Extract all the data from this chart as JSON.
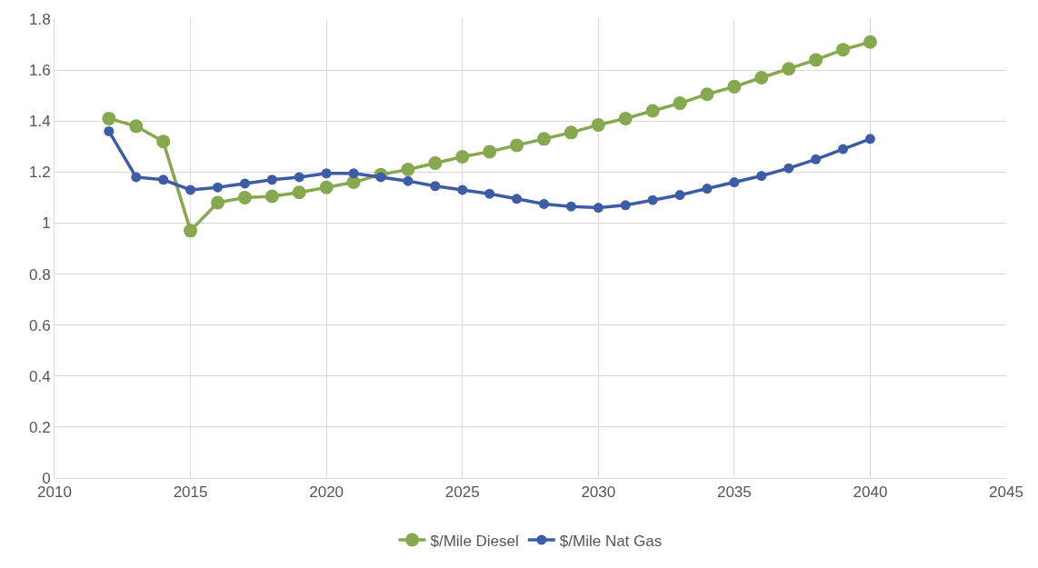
{
  "chart_data": {
    "type": "line",
    "x": [
      2012,
      2013,
      2014,
      2015,
      2016,
      2017,
      2018,
      2019,
      2020,
      2021,
      2022,
      2023,
      2024,
      2025,
      2026,
      2027,
      2028,
      2029,
      2030,
      2031,
      2032,
      2033,
      2034,
      2035,
      2036,
      2037,
      2038,
      2039,
      2040
    ],
    "series": [
      {
        "name": "$/Mile Diesel",
        "color": "#86a84e",
        "values": [
          1.41,
          1.38,
          1.32,
          0.97,
          1.08,
          1.1,
          1.105,
          1.12,
          1.14,
          1.16,
          1.19,
          1.21,
          1.235,
          1.26,
          1.28,
          1.305,
          1.33,
          1.355,
          1.385,
          1.41,
          1.44,
          1.47,
          1.505,
          1.535,
          1.57,
          1.605,
          1.64,
          1.68,
          1.71
        ]
      },
      {
        "name": "$/Mile Nat Gas",
        "color": "#3d5ca6",
        "values": [
          1.36,
          1.18,
          1.17,
          1.13,
          1.14,
          1.155,
          1.17,
          1.18,
          1.195,
          1.195,
          1.18,
          1.165,
          1.145,
          1.13,
          1.115,
          1.095,
          1.075,
          1.065,
          1.06,
          1.07,
          1.09,
          1.11,
          1.135,
          1.16,
          1.185,
          1.215,
          1.25,
          1.29,
          1.33
        ]
      }
    ],
    "xlim": [
      2010,
      2045
    ],
    "xticks": [
      2010,
      2015,
      2020,
      2025,
      2030,
      2035,
      2040,
      2045
    ],
    "ylim": [
      0,
      1.8
    ],
    "yticks": [
      0,
      0.2,
      0.4,
      0.6,
      0.8,
      1,
      1.2,
      1.4,
      1.6,
      1.8
    ],
    "grid": true,
    "legend": "bottom",
    "marker": "circle",
    "line_style": "solid"
  }
}
